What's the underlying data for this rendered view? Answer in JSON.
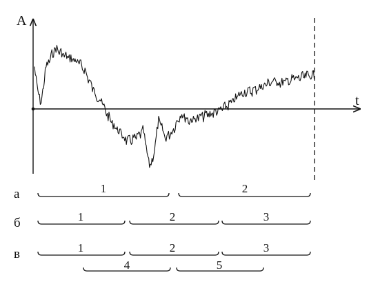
{
  "axes": {
    "y_label": "A",
    "x_label": "t"
  },
  "rows": [
    {
      "label": "а",
      "segments": [
        {
          "label": "1"
        },
        {
          "label": "2"
        }
      ]
    },
    {
      "label": "б",
      "segments": [
        {
          "label": "1"
        },
        {
          "label": "2"
        },
        {
          "label": "3"
        }
      ]
    },
    {
      "label": "в",
      "segments": [
        {
          "label": "1"
        },
        {
          "label": "2"
        },
        {
          "label": "3"
        }
      ]
    }
  ],
  "overlap_segments": [
    {
      "label": "4"
    },
    {
      "label": "5"
    }
  ]
}
